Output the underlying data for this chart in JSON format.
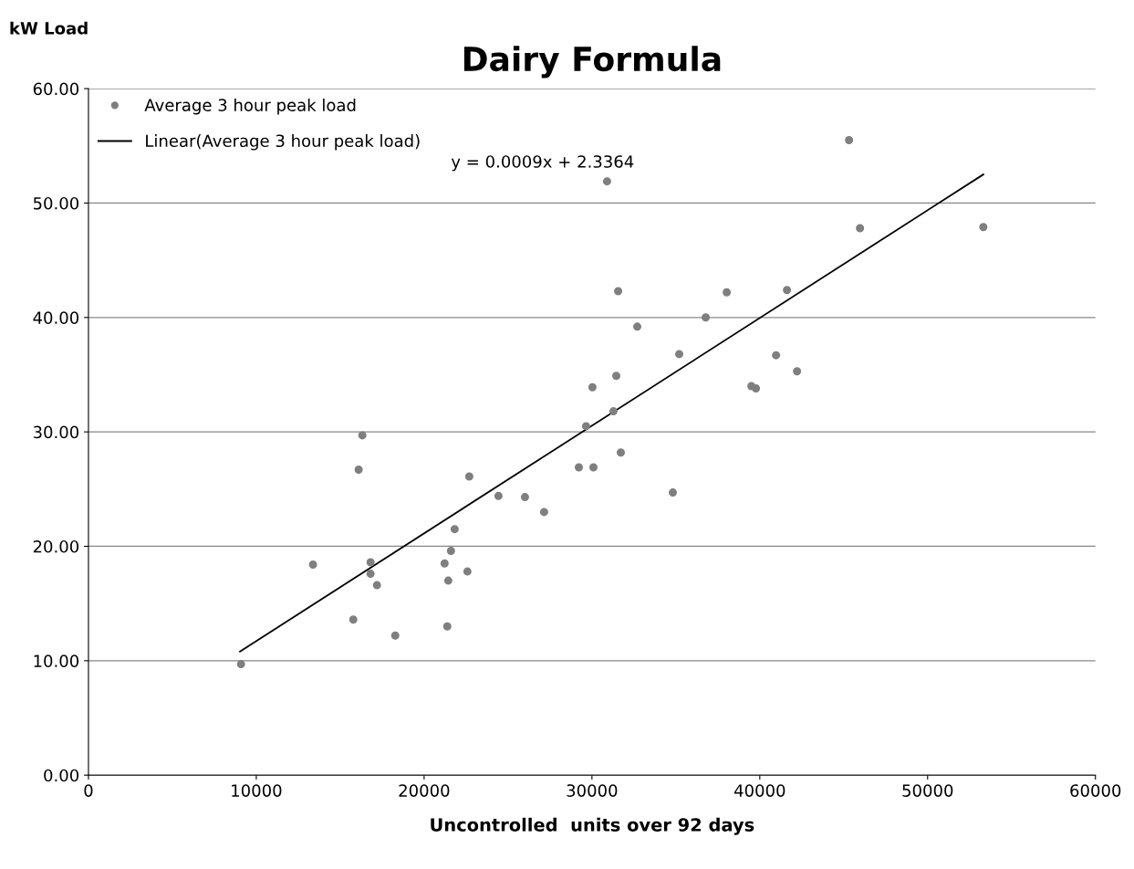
{
  "chart_data": {
    "type": "scatter",
    "title": "Dairy Formula",
    "xlabel": "Uncontrolled  units over 92 days",
    "ylabel": "kW Load",
    "xlim": [
      0,
      60000
    ],
    "xticks": [
      0,
      10000,
      20000,
      30000,
      40000,
      50000,
      60000
    ],
    "ylim": [
      0,
      60
    ],
    "yticks": [
      {
        "value": 0,
        "label": "0.00"
      },
      {
        "value": 10,
        "label": "10.00"
      },
      {
        "value": 20,
        "label": "20.00"
      },
      {
        "value": 30,
        "label": "30.00"
      },
      {
        "value": 40,
        "label": "40.00"
      },
      {
        "value": 50,
        "label": "50.00"
      },
      {
        "value": 60,
        "label": "60.00"
      }
    ],
    "grid": "y",
    "legend": "top left",
    "marker": "circle",
    "annotations": [
      "y = 0.0009x + 2.3364"
    ],
    "series": [
      {
        "name": "Average 3 hour peak load",
        "color": "#7f7f7f",
        "x": [
          9090,
          13380,
          15780,
          16100,
          16320,
          16810,
          16810,
          17190,
          18280,
          21220,
          21380,
          21440,
          21600,
          21820,
          22580,
          22690,
          24430,
          26010,
          27150,
          29220,
          29650,
          30030,
          30090,
          30900,
          31280,
          31450,
          31560,
          31720,
          32700,
          34820,
          35200,
          36780,
          38030,
          39500,
          39770,
          40970,
          41620,
          42220,
          45320,
          45970,
          53320
        ],
        "values": [
          9.7,
          18.4,
          13.6,
          26.7,
          29.7,
          18.6,
          17.6,
          16.6,
          12.2,
          18.5,
          13.0,
          17.0,
          19.6,
          21.5,
          17.8,
          26.1,
          24.4,
          24.3,
          23.0,
          26.9,
          30.5,
          33.9,
          26.9,
          51.9,
          31.8,
          34.9,
          42.3,
          28.2,
          39.2,
          24.7,
          36.8,
          40.0,
          42.2,
          34.0,
          33.8,
          36.7,
          42.4,
          35.3,
          55.5,
          47.8,
          47.9
        ]
      },
      {
        "name": "Linear(Average 3 hour peak load)",
        "type": "line",
        "color": "#000000",
        "marker": "none",
        "x": [
          9030,
          53320
        ],
        "values": [
          10.8,
          52.5
        ]
      }
    ]
  }
}
